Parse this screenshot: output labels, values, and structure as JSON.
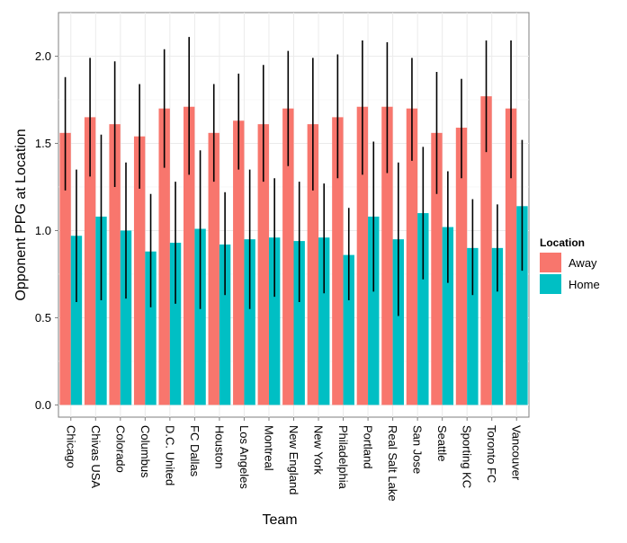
{
  "chart_data": {
    "type": "bar",
    "xlabel": "Team",
    "ylabel": "Opponent PPG at Location",
    "ylim": [
      -0.07,
      2.25
    ],
    "yticks": [
      0.0,
      0.5,
      1.0,
      1.5,
      2.0
    ],
    "ytick_labels": [
      "0.0",
      "0.5",
      "1.0",
      "1.5",
      "2.0"
    ],
    "grid": true,
    "legend": {
      "title": "Location",
      "position": "right"
    },
    "categories": [
      "Chicago",
      "Chivas USA",
      "Colorado",
      "Columbus",
      "D.C. United",
      "FC Dallas",
      "Houston",
      "Los Angeles",
      "Montreal",
      "New England",
      "New York",
      "Philadelphia",
      "Portland",
      "Real Salt Lake",
      "San Jose",
      "Seattle",
      "Sporting KC",
      "Toronto FC",
      "Vancouver"
    ],
    "series": [
      {
        "name": "Away",
        "color": "#F8766D",
        "values": [
          1.56,
          1.65,
          1.61,
          1.54,
          1.7,
          1.71,
          1.56,
          1.63,
          1.61,
          1.7,
          1.61,
          1.65,
          1.71,
          1.71,
          1.7,
          1.56,
          1.59,
          1.77,
          1.7
        ],
        "lower": [
          1.23,
          1.31,
          1.25,
          1.24,
          1.36,
          1.32,
          1.28,
          1.35,
          1.28,
          1.37,
          1.23,
          1.3,
          1.32,
          1.33,
          1.4,
          1.21,
          1.3,
          1.45,
          1.3
        ],
        "upper": [
          1.88,
          1.99,
          1.97,
          1.84,
          2.04,
          2.11,
          1.84,
          1.9,
          1.95,
          2.03,
          1.99,
          2.01,
          2.09,
          2.08,
          1.99,
          1.91,
          1.87,
          2.09,
          2.09
        ]
      },
      {
        "name": "Home",
        "color": "#00BFC4",
        "values": [
          0.97,
          1.08,
          1.0,
          0.88,
          0.93,
          1.01,
          0.92,
          0.95,
          0.96,
          0.94,
          0.96,
          0.86,
          1.08,
          0.95,
          1.1,
          1.02,
          0.9,
          0.9,
          1.14
        ],
        "lower": [
          0.59,
          0.6,
          0.61,
          0.56,
          0.58,
          0.55,
          0.63,
          0.55,
          0.62,
          0.59,
          0.64,
          0.6,
          0.65,
          0.51,
          0.72,
          0.7,
          0.63,
          0.65,
          0.77
        ],
        "upper": [
          1.35,
          1.55,
          1.39,
          1.21,
          1.28,
          1.46,
          1.22,
          1.35,
          1.3,
          1.28,
          1.27,
          1.13,
          1.51,
          1.39,
          1.48,
          1.34,
          1.18,
          1.15,
          1.52
        ]
      }
    ]
  }
}
